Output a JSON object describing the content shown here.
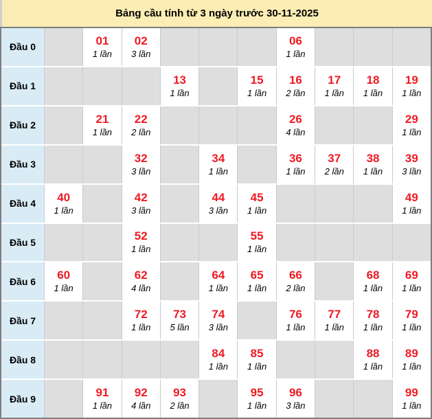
{
  "title": "Bảng cầu tính từ 3 ngày trước 30-11-2025",
  "colors": {
    "title_background": "#fbedb3",
    "label_background": "#d9ecf6",
    "empty_cell_background": "#dedede",
    "filled_cell_background": "#ffffff",
    "number_red": "#ef1a23",
    "table_border": "#7e7e7e"
  },
  "rows": [
    {
      "label": "Đầu 0",
      "cells": [
        null,
        {
          "num": "01",
          "count": "1 lần"
        },
        {
          "num": "02",
          "count": "3 lần"
        },
        null,
        null,
        null,
        {
          "num": "06",
          "count": "1 lần"
        },
        null,
        null,
        null
      ]
    },
    {
      "label": "Đầu 1",
      "cells": [
        null,
        null,
        null,
        {
          "num": "13",
          "count": "1 lần"
        },
        null,
        {
          "num": "15",
          "count": "1 lần"
        },
        {
          "num": "16",
          "count": "2 lần"
        },
        {
          "num": "17",
          "count": "1 lần"
        },
        {
          "num": "18",
          "count": "1 lần"
        },
        {
          "num": "19",
          "count": "1 lần"
        }
      ]
    },
    {
      "label": "Đầu 2",
      "cells": [
        null,
        {
          "num": "21",
          "count": "1 lần"
        },
        {
          "num": "22",
          "count": "2 lần"
        },
        null,
        null,
        null,
        {
          "num": "26",
          "count": "4 lần"
        },
        null,
        null,
        {
          "num": "29",
          "count": "1 lần"
        }
      ]
    },
    {
      "label": "Đầu 3",
      "cells": [
        null,
        null,
        {
          "num": "32",
          "count": "3 lần"
        },
        null,
        {
          "num": "34",
          "count": "1 lần"
        },
        null,
        {
          "num": "36",
          "count": "1 lần"
        },
        {
          "num": "37",
          "count": "2 lần"
        },
        {
          "num": "38",
          "count": "1 lần"
        },
        {
          "num": "39",
          "count": "3 lần"
        }
      ]
    },
    {
      "label": "Đầu 4",
      "cells": [
        {
          "num": "40",
          "count": "1 lần"
        },
        null,
        {
          "num": "42",
          "count": "3 lần"
        },
        null,
        {
          "num": "44",
          "count": "3 lần"
        },
        {
          "num": "45",
          "count": "1 lần"
        },
        null,
        null,
        null,
        {
          "num": "49",
          "count": "1 lần"
        }
      ]
    },
    {
      "label": "Đầu 5",
      "cells": [
        null,
        null,
        {
          "num": "52",
          "count": "1 lần"
        },
        null,
        null,
        {
          "num": "55",
          "count": "1 lần"
        },
        null,
        null,
        null,
        null
      ]
    },
    {
      "label": "Đầu 6",
      "cells": [
        {
          "num": "60",
          "count": "1 lần"
        },
        null,
        {
          "num": "62",
          "count": "4 lần"
        },
        null,
        {
          "num": "64",
          "count": "1 lần"
        },
        {
          "num": "65",
          "count": "1 lần"
        },
        {
          "num": "66",
          "count": "2 lần"
        },
        null,
        {
          "num": "68",
          "count": "1 lần"
        },
        {
          "num": "69",
          "count": "1 lần"
        }
      ]
    },
    {
      "label": "Đầu 7",
      "cells": [
        null,
        null,
        {
          "num": "72",
          "count": "1 lần"
        },
        {
          "num": "73",
          "count": "5 lần"
        },
        {
          "num": "74",
          "count": "3 lần"
        },
        null,
        {
          "num": "76",
          "count": "1 lần"
        },
        {
          "num": "77",
          "count": "1 lần"
        },
        {
          "num": "78",
          "count": "1 lần"
        },
        {
          "num": "79",
          "count": "1 lần"
        }
      ]
    },
    {
      "label": "Đầu 8",
      "cells": [
        null,
        null,
        null,
        null,
        {
          "num": "84",
          "count": "1 lần"
        },
        {
          "num": "85",
          "count": "1 lần"
        },
        null,
        null,
        {
          "num": "88",
          "count": "1 lần"
        },
        {
          "num": "89",
          "count": "1 lần"
        }
      ]
    },
    {
      "label": "Đầu 9",
      "cells": [
        null,
        {
          "num": "91",
          "count": "1 lần"
        },
        {
          "num": "92",
          "count": "4 lần"
        },
        {
          "num": "93",
          "count": "2 lần"
        },
        null,
        {
          "num": "95",
          "count": "1 lần"
        },
        {
          "num": "96",
          "count": "3 lần"
        },
        null,
        null,
        {
          "num": "99",
          "count": "1 lần"
        }
      ]
    }
  ]
}
